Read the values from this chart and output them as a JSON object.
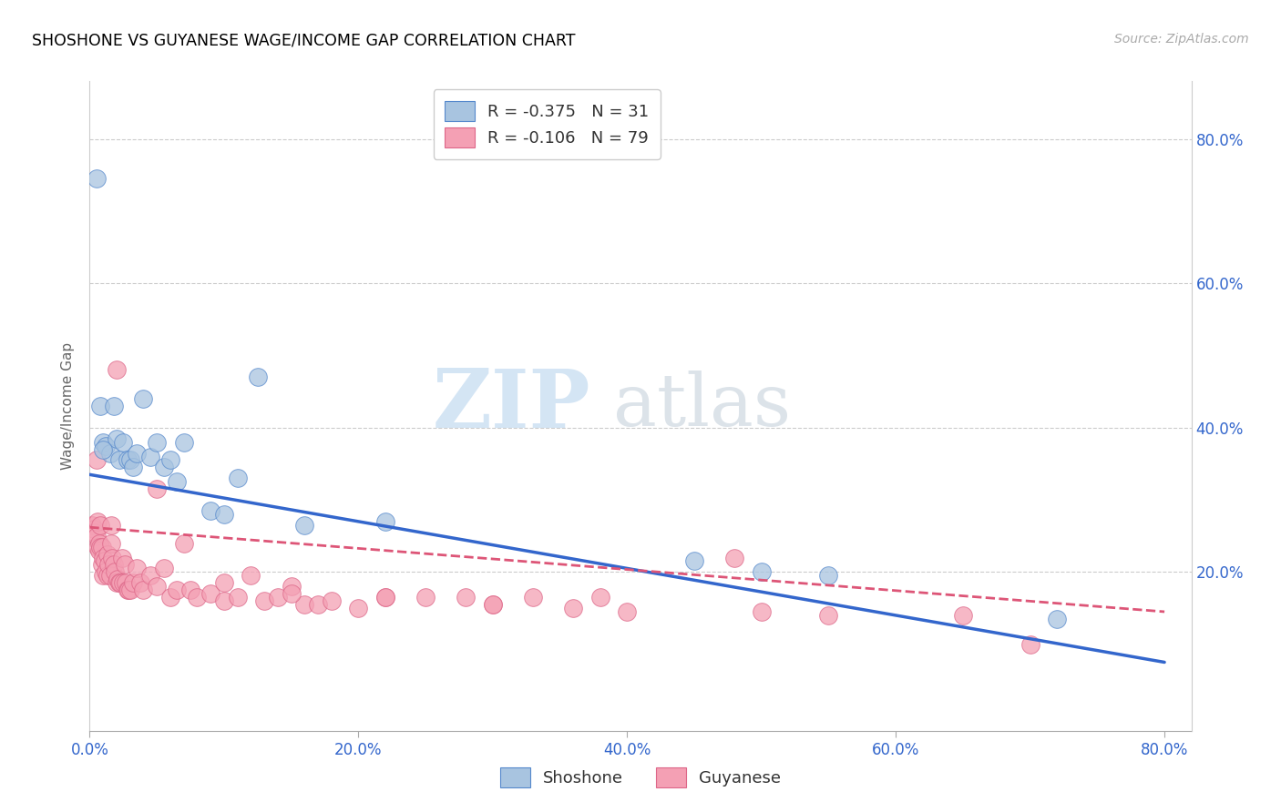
{
  "title": "SHOSHONE VS GUYANESE WAGE/INCOME GAP CORRELATION CHART",
  "source": "Source: ZipAtlas.com",
  "ylabel": "Wage/Income Gap",
  "xlim": [
    0.0,
    0.82
  ],
  "ylim": [
    -0.02,
    0.88
  ],
  "x_tick_positions": [
    0.0,
    0.2,
    0.4,
    0.6,
    0.8
  ],
  "y_tick_positions": [
    0.2,
    0.4,
    0.6,
    0.8
  ],
  "shoshone_color": "#a8c4e0",
  "shoshone_edge": "#5588cc",
  "guyanese_color": "#f4a0b4",
  "guyanese_edge": "#dd6688",
  "shoshone_line_color": "#3366cc",
  "guyanese_line_color": "#dd5577",
  "legend_r_blue": "-0.375",
  "legend_n_blue": "31",
  "legend_r_pink": "-0.106",
  "legend_n_pink": "79",
  "shoshone_x": [
    0.005,
    0.008,
    0.01,
    0.012,
    0.015,
    0.018,
    0.02,
    0.022,
    0.025,
    0.028,
    0.03,
    0.032,
    0.035,
    0.04,
    0.045,
    0.05,
    0.055,
    0.06,
    0.065,
    0.07,
    0.09,
    0.1,
    0.11,
    0.125,
    0.16,
    0.22,
    0.45,
    0.5,
    0.55,
    0.72,
    0.01
  ],
  "shoshone_y": [
    0.745,
    0.43,
    0.38,
    0.375,
    0.365,
    0.43,
    0.385,
    0.355,
    0.38,
    0.355,
    0.355,
    0.345,
    0.365,
    0.44,
    0.36,
    0.38,
    0.345,
    0.355,
    0.325,
    0.38,
    0.285,
    0.28,
    0.33,
    0.47,
    0.265,
    0.27,
    0.215,
    0.2,
    0.195,
    0.135,
    0.37
  ],
  "guyanese_x": [
    0.002,
    0.003,
    0.004,
    0.005,
    0.005,
    0.006,
    0.006,
    0.007,
    0.007,
    0.008,
    0.008,
    0.009,
    0.009,
    0.01,
    0.01,
    0.011,
    0.012,
    0.013,
    0.013,
    0.014,
    0.015,
    0.016,
    0.016,
    0.017,
    0.018,
    0.019,
    0.02,
    0.021,
    0.022,
    0.023,
    0.024,
    0.025,
    0.026,
    0.027,
    0.028,
    0.029,
    0.03,
    0.032,
    0.035,
    0.038,
    0.04,
    0.045,
    0.05,
    0.055,
    0.06,
    0.065,
    0.07,
    0.075,
    0.08,
    0.09,
    0.1,
    0.11,
    0.12,
    0.13,
    0.14,
    0.15,
    0.16,
    0.17,
    0.18,
    0.2,
    0.22,
    0.25,
    0.28,
    0.3,
    0.33,
    0.36,
    0.4,
    0.48,
    0.65,
    0.7,
    0.02,
    0.05,
    0.1,
    0.15,
    0.22,
    0.3,
    0.38,
    0.5,
    0.55
  ],
  "guyanese_y": [
    0.265,
    0.26,
    0.255,
    0.25,
    0.355,
    0.27,
    0.235,
    0.24,
    0.23,
    0.235,
    0.265,
    0.21,
    0.235,
    0.195,
    0.22,
    0.215,
    0.2,
    0.225,
    0.195,
    0.21,
    0.195,
    0.265,
    0.24,
    0.22,
    0.21,
    0.2,
    0.185,
    0.19,
    0.185,
    0.185,
    0.22,
    0.185,
    0.21,
    0.185,
    0.175,
    0.175,
    0.175,
    0.185,
    0.205,
    0.185,
    0.175,
    0.195,
    0.18,
    0.205,
    0.165,
    0.175,
    0.24,
    0.175,
    0.165,
    0.17,
    0.16,
    0.165,
    0.195,
    0.16,
    0.165,
    0.18,
    0.155,
    0.155,
    0.16,
    0.15,
    0.165,
    0.165,
    0.165,
    0.155,
    0.165,
    0.15,
    0.145,
    0.22,
    0.14,
    0.1,
    0.48,
    0.315,
    0.185,
    0.17,
    0.165,
    0.155,
    0.165,
    0.145,
    0.14
  ]
}
